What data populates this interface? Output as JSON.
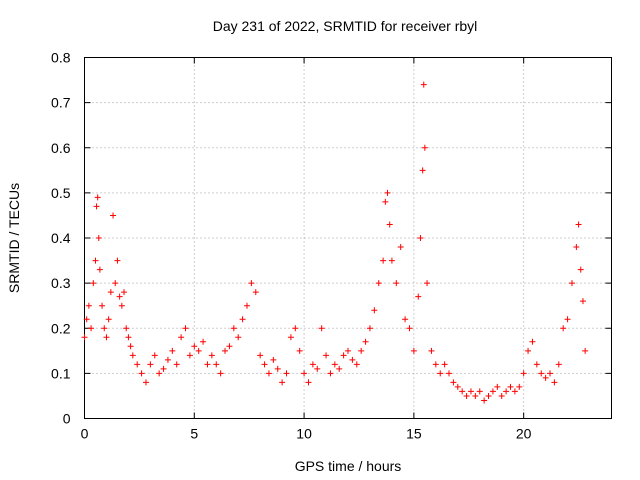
{
  "chart_data": {
    "type": "scatter",
    "title": "Day 231 of 2022, SRMTID for receiver rbyl",
    "xlabel": "GPS time / hours",
    "ylabel": "SRMTID / TECUs",
    "xlim": [
      0,
      24
    ],
    "ylim": [
      0,
      0.8
    ],
    "xticks": [
      0,
      5,
      10,
      15,
      20
    ],
    "xtick_labels": [
      "0",
      "5",
      "10",
      "15",
      "20"
    ],
    "yticks": [
      0,
      0.1,
      0.2,
      0.3,
      0.4,
      0.5,
      0.6,
      0.7,
      0.8
    ],
    "ytick_labels": [
      "0",
      "0.1",
      "0.2",
      "0.3",
      "0.4",
      "0.5",
      "0.6",
      "0.7",
      "0.8"
    ],
    "grid": true,
    "marker": "plus",
    "color": "#ff0000",
    "series": [
      {
        "name": "SRMTID",
        "x": [
          0.0,
          0.1,
          0.2,
          0.3,
          0.4,
          0.5,
          0.55,
          0.6,
          0.65,
          0.7,
          0.8,
          0.9,
          1.0,
          1.1,
          1.2,
          1.3,
          1.4,
          1.5,
          1.6,
          1.7,
          1.8,
          1.9,
          2.0,
          2.1,
          2.2,
          2.4,
          2.6,
          2.8,
          3.0,
          3.2,
          3.4,
          3.6,
          3.8,
          4.0,
          4.2,
          4.4,
          4.6,
          4.8,
          5.0,
          5.2,
          5.4,
          5.6,
          5.8,
          6.0,
          6.2,
          6.4,
          6.6,
          6.8,
          7.0,
          7.2,
          7.4,
          7.6,
          7.8,
          8.0,
          8.2,
          8.4,
          8.6,
          8.8,
          9.0,
          9.2,
          9.4,
          9.6,
          9.8,
          10.0,
          10.2,
          10.4,
          10.6,
          10.8,
          11.0,
          11.2,
          11.4,
          11.6,
          11.8,
          12.0,
          12.2,
          12.4,
          12.6,
          12.8,
          13.0,
          13.2,
          13.4,
          13.6,
          13.7,
          13.8,
          13.9,
          14.0,
          14.2,
          14.4,
          14.6,
          14.8,
          15.0,
          15.2,
          15.3,
          15.4,
          15.45,
          15.5,
          15.6,
          15.8,
          16.0,
          16.2,
          16.4,
          16.6,
          16.8,
          17.0,
          17.2,
          17.4,
          17.6,
          17.8,
          18.0,
          18.2,
          18.4,
          18.6,
          18.8,
          19.0,
          19.2,
          19.4,
          19.6,
          19.8,
          20.0,
          20.2,
          20.4,
          20.6,
          20.8,
          21.0,
          21.2,
          21.4,
          21.6,
          21.8,
          22.0,
          22.2,
          22.4,
          22.5,
          22.6,
          22.7,
          22.8
        ],
        "y": [
          0.18,
          0.22,
          0.25,
          0.2,
          0.3,
          0.35,
          0.47,
          0.49,
          0.4,
          0.33,
          0.25,
          0.2,
          0.18,
          0.22,
          0.28,
          0.45,
          0.3,
          0.35,
          0.27,
          0.25,
          0.28,
          0.2,
          0.18,
          0.16,
          0.14,
          0.12,
          0.1,
          0.08,
          0.12,
          0.14,
          0.1,
          0.11,
          0.13,
          0.15,
          0.12,
          0.18,
          0.2,
          0.14,
          0.16,
          0.15,
          0.17,
          0.12,
          0.14,
          0.12,
          0.1,
          0.15,
          0.16,
          0.2,
          0.18,
          0.22,
          0.25,
          0.3,
          0.28,
          0.14,
          0.12,
          0.1,
          0.13,
          0.11,
          0.08,
          0.1,
          0.18,
          0.2,
          0.15,
          0.1,
          0.08,
          0.12,
          0.11,
          0.2,
          0.14,
          0.1,
          0.12,
          0.11,
          0.14,
          0.15,
          0.13,
          0.12,
          0.15,
          0.17,
          0.2,
          0.24,
          0.3,
          0.35,
          0.48,
          0.5,
          0.43,
          0.35,
          0.3,
          0.38,
          0.22,
          0.2,
          0.15,
          0.27,
          0.4,
          0.55,
          0.74,
          0.6,
          0.3,
          0.15,
          0.12,
          0.1,
          0.12,
          0.1,
          0.08,
          0.07,
          0.06,
          0.05,
          0.06,
          0.05,
          0.06,
          0.04,
          0.05,
          0.06,
          0.07,
          0.05,
          0.06,
          0.07,
          0.06,
          0.07,
          0.1,
          0.15,
          0.17,
          0.12,
          0.1,
          0.09,
          0.1,
          0.08,
          0.12,
          0.2,
          0.22,
          0.3,
          0.38,
          0.43,
          0.33,
          0.26,
          0.15
        ]
      }
    ]
  }
}
